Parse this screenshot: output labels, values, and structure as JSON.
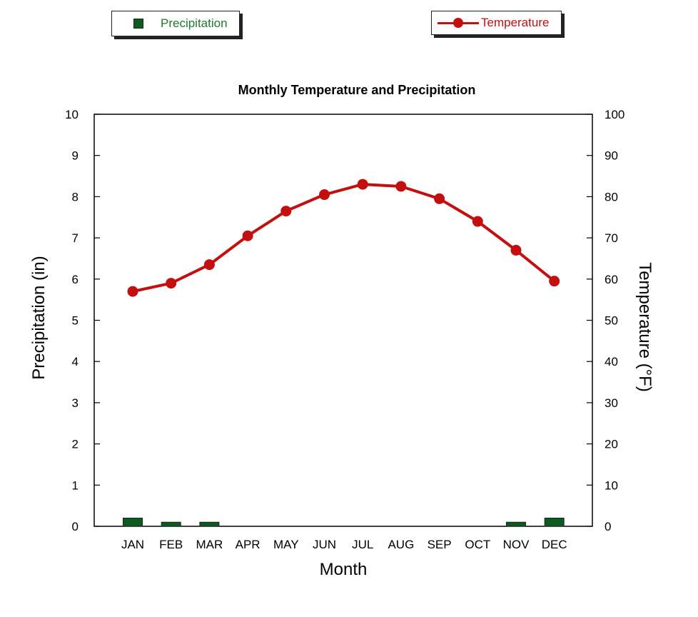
{
  "legend": {
    "precipitation_label": "Precipitation",
    "temperature_label": "Temperature"
  },
  "colors": {
    "precipitation_bar": "#0b5a1e",
    "precipitation_text": "#1f7a2e",
    "temperature": "#c40f0f",
    "axis": "#000000"
  },
  "chart_data": {
    "type": "bar+line",
    "title": "Monthly Temperature and Precipitation",
    "xlabel": "Month",
    "ylabel_left": "Precipitation (in)",
    "ylabel_right": "Temperature (°F)",
    "categories": [
      "JAN",
      "FEB",
      "MAR",
      "APR",
      "MAY",
      "JUN",
      "JUL",
      "AUG",
      "SEP",
      "OCT",
      "NOV",
      "DEC"
    ],
    "ylim_left": [
      0,
      10
    ],
    "yticks_left": [
      0,
      1,
      2,
      3,
      4,
      5,
      6,
      7,
      8,
      9,
      10
    ],
    "ylim_right": [
      0,
      100
    ],
    "yticks_right": [
      0,
      10,
      20,
      30,
      40,
      50,
      60,
      70,
      80,
      90,
      100
    ],
    "series": [
      {
        "name": "Precipitation",
        "type": "bar",
        "axis": "left",
        "values": [
          0.2,
          0.1,
          0.1,
          0,
          0,
          0,
          0,
          0,
          0,
          0,
          0.1,
          0.2
        ]
      },
      {
        "name": "Temperature",
        "type": "line",
        "axis": "right",
        "values": [
          57,
          59,
          63.5,
          70.5,
          76.5,
          80.5,
          83,
          82.5,
          79.5,
          74,
          67,
          59.5
        ]
      }
    ],
    "grid": false,
    "legend_position": "top"
  }
}
